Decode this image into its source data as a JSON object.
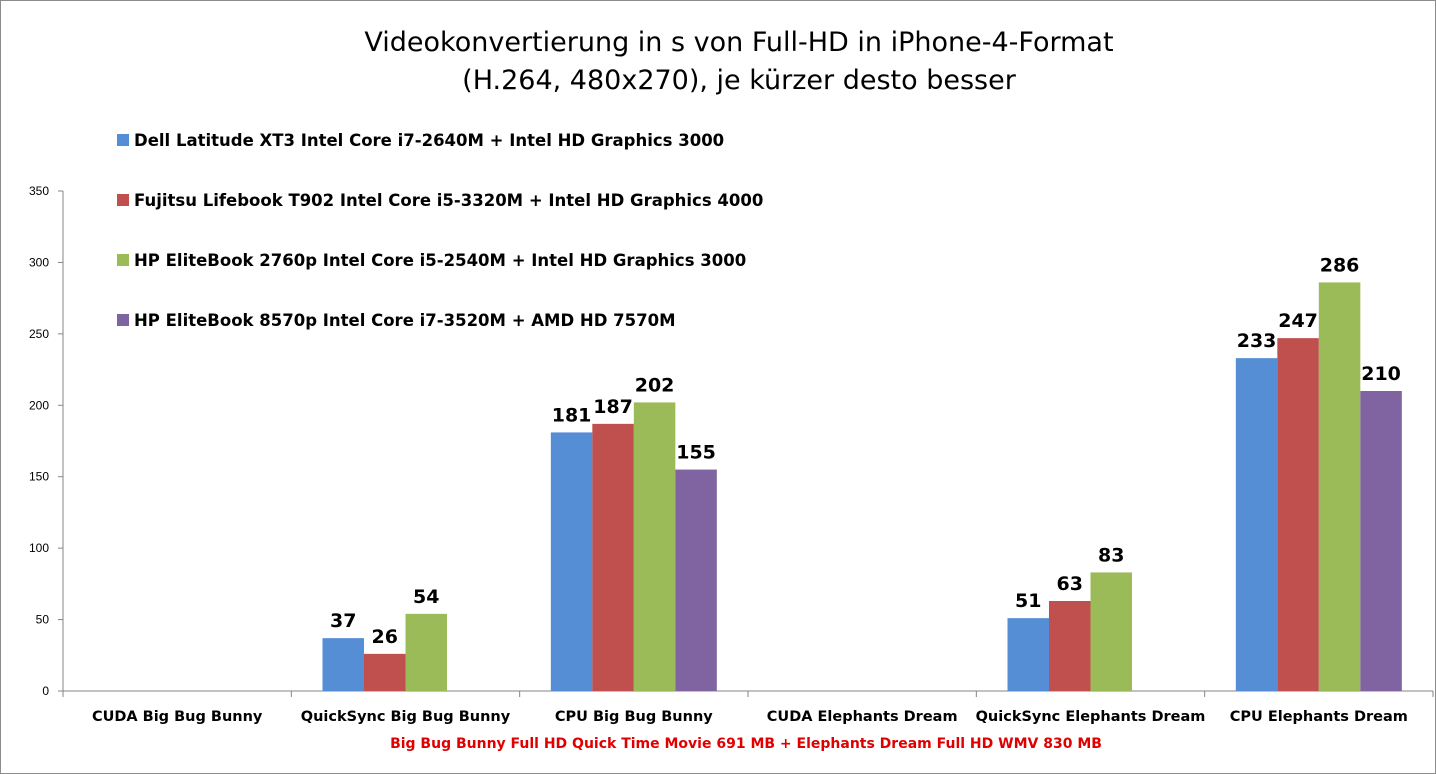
{
  "chart_data": {
    "type": "bar",
    "title": "Videokonvertierung in s von Full-HD in iPhone-4-Format",
    "subtitle": "(H.264, 480x270), je kürzer desto besser",
    "categories": [
      "CUDA Big Bug Bunny",
      "QuickSync Big Bug Bunny",
      "CPU Big Bug Bunny",
      "CUDA Elephants Dream",
      "QuickSync Elephants Dream",
      "CPU Elephants Dream"
    ],
    "series": [
      {
        "name": "Dell Latitude  XT3 Intel Core i7-2640M + Intel HD Graphics 3000",
        "color": "#558ED5",
        "values": [
          null,
          37,
          181,
          null,
          51,
          233
        ]
      },
      {
        "name": "Fujitsu Lifebook T902 Intel Core i5-3320M + Intel HD Graphics 4000",
        "color": "#C0504D",
        "values": [
          null,
          26,
          187,
          null,
          63,
          247
        ]
      },
      {
        "name": "HP EliteBook 2760p Intel Core i5-2540M + Intel HD Graphics 3000",
        "color": "#9BBB59",
        "values": [
          null,
          54,
          202,
          null,
          83,
          286
        ]
      },
      {
        "name": "HP EliteBook 8570p Intel Core i7-3520M + AMD HD 7570M",
        "color": "#8064A2",
        "values": [
          null,
          null,
          155,
          null,
          null,
          210
        ]
      }
    ],
    "ylim": [
      0,
      350
    ],
    "yticks": [
      0,
      50,
      100,
      150,
      200,
      250,
      300,
      350
    ],
    "xlabel": "Big Bug Bunny Full HD Quick Time Movie 691 MB + Elephants Dream Full HD WMV 830 MB",
    "ylabel": "",
    "grid": false,
    "legend_position": "top-left"
  }
}
